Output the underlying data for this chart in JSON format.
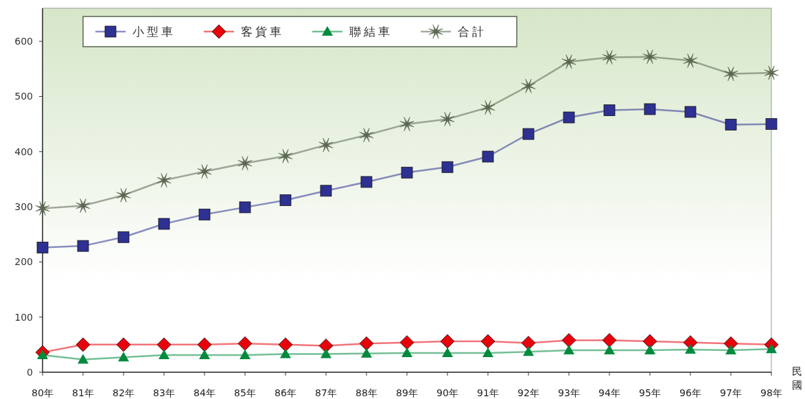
{
  "chart_data": {
    "type": "line",
    "xlabel": "民國",
    "categories": [
      "80年",
      "81年",
      "82年",
      "83年",
      "84年",
      "85年",
      "86年",
      "87年",
      "88年",
      "89年",
      "90年",
      "91年",
      "92年",
      "93年",
      "94年",
      "95年",
      "96年",
      "97年",
      "98年"
    ],
    "series": [
      {
        "name": "小型車",
        "color": "#2e3192",
        "marker": "square",
        "values": [
          226,
          229,
          245,
          269,
          286,
          299,
          312,
          329,
          345,
          362,
          372,
          391,
          432,
          462,
          475,
          477,
          472,
          449,
          450
        ]
      },
      {
        "name": "客貨車",
        "color": "#e8000b",
        "marker": "diamond",
        "values": [
          36,
          50,
          50,
          50,
          50,
          52,
          50,
          48,
          52,
          54,
          56,
          56,
          53,
          58,
          58,
          56,
          54,
          52,
          50
        ]
      },
      {
        "name": "聯結車",
        "color": "#008a3e",
        "marker": "triangle",
        "values": [
          31,
          23,
          27,
          31,
          31,
          31,
          33,
          33,
          34,
          35,
          35,
          35,
          37,
          40,
          40,
          40,
          41,
          40,
          42
        ]
      },
      {
        "name": "合計",
        "color": "#5a6650",
        "marker": "star",
        "values": [
          297,
          302,
          321,
          348,
          364,
          379,
          392,
          412,
          430,
          450,
          459,
          480,
          519,
          563,
          571,
          572,
          565,
          541,
          543
        ]
      }
    ],
    "ylim": [
      0,
      660
    ],
    "yticks": [
      0,
      100,
      200,
      300,
      400,
      500,
      600
    ],
    "grid": false,
    "legend": "top left"
  }
}
